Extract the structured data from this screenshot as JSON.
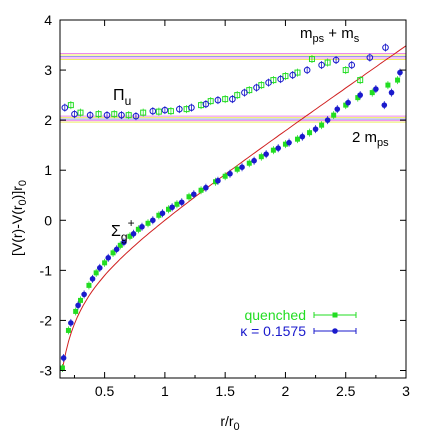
{
  "chart_data": {
    "type": "scatter",
    "xlabel": "r/r",
    "xlabel_sub": "0",
    "ylabel": "[V(r)-V(r",
    "ylabel_sub": "0",
    "ylabel_tail": ")]r",
    "ylabel_sub2": "0",
    "xlim": [
      0.13,
      3.0
    ],
    "ylim": [
      -3.15,
      4.0
    ],
    "xticks": [
      0.5,
      1,
      1.5,
      2,
      2.5,
      3
    ],
    "xtick_labels": [
      "0.5",
      "1",
      "1.5",
      "2",
      "2.5",
      "3"
    ],
    "yticks": [
      -3,
      -2,
      -1,
      0,
      1,
      2,
      3,
      4
    ],
    "ytick_labels": [
      "-3",
      "-2",
      "-1",
      "0",
      "1",
      "2",
      "3",
      "4"
    ],
    "grid": false,
    "legend_position": "bottom-right",
    "colors": {
      "quenched": "#22dd22",
      "kappa": "#1a1acc",
      "fit_curve": "#d02020",
      "band_magenta": "#ee88ee",
      "band_yellow": "#eeee66",
      "band_blue": "#9999ee"
    },
    "annotations": {
      "pi_u": "Π",
      "pi_u_sub": "u",
      "sigma": "Σ",
      "sigma_sub": "g",
      "sigma_sup": "+",
      "threshold_upper_a": "m",
      "threshold_upper_a_sub": "ps",
      "threshold_upper_plus": " + m",
      "threshold_upper_b_sub": "s",
      "threshold_lower_a": "2 m",
      "threshold_lower_sub": "ps"
    },
    "bands": [
      {
        "name": "upper",
        "lines": [
          3.33,
          3.3,
          3.27,
          3.24,
          3.21
        ]
      },
      {
        "name": "lower",
        "lines": [
          2.08,
          2.05,
          2.02,
          1.99,
          1.96
        ]
      }
    ],
    "series": [
      {
        "name": "quenched",
        "marker": "filled-square",
        "points": [
          [
            0.15,
            -2.95
          ],
          [
            0.2,
            -2.2
          ],
          [
            0.26,
            -1.82
          ],
          [
            0.3,
            -1.6
          ],
          [
            0.37,
            -1.3
          ],
          [
            0.43,
            -1.05
          ],
          [
            0.5,
            -0.85
          ],
          [
            0.57,
            -0.65
          ],
          [
            0.63,
            -0.5
          ],
          [
            0.71,
            -0.32
          ],
          [
            0.78,
            -0.18
          ],
          [
            0.86,
            -0.06
          ],
          [
            0.95,
            0.1
          ],
          [
            1.03,
            0.22
          ],
          [
            1.1,
            0.32
          ],
          [
            1.2,
            0.47
          ],
          [
            1.3,
            0.6
          ],
          [
            1.42,
            0.77
          ],
          [
            1.5,
            0.88
          ],
          [
            1.6,
            1.02
          ],
          [
            1.7,
            1.14
          ],
          [
            1.8,
            1.27
          ],
          [
            1.9,
            1.4
          ],
          [
            2.0,
            1.52
          ],
          [
            2.1,
            1.62
          ],
          [
            2.2,
            1.75
          ],
          [
            2.3,
            1.9
          ],
          [
            2.4,
            2.1
          ],
          [
            2.5,
            2.3
          ],
          [
            2.6,
            2.45
          ],
          [
            2.72,
            2.55
          ],
          [
            2.85,
            2.7
          ],
          [
            2.93,
            2.8
          ]
        ]
      },
      {
        "name": "kappa",
        "marker": "filled-circle",
        "points": [
          [
            0.16,
            -2.75
          ],
          [
            0.22,
            -2.05
          ],
          [
            0.28,
            -1.7
          ],
          [
            0.33,
            -1.48
          ],
          [
            0.4,
            -1.17
          ],
          [
            0.46,
            -0.95
          ],
          [
            0.53,
            -0.75
          ],
          [
            0.6,
            -0.58
          ],
          [
            0.66,
            -0.44
          ],
          [
            0.74,
            -0.27
          ],
          [
            0.81,
            -0.13
          ],
          [
            0.9,
            0.0
          ],
          [
            0.98,
            0.14
          ],
          [
            1.06,
            0.26
          ],
          [
            1.14,
            0.36
          ],
          [
            1.24,
            0.52
          ],
          [
            1.34,
            0.65
          ],
          [
            1.44,
            0.79
          ],
          [
            1.54,
            0.93
          ],
          [
            1.64,
            1.06
          ],
          [
            1.74,
            1.19
          ],
          [
            1.84,
            1.32
          ],
          [
            1.94,
            1.44
          ],
          [
            2.03,
            1.55
          ],
          [
            2.14,
            1.67
          ],
          [
            2.25,
            1.82
          ],
          [
            2.35,
            2.0
          ],
          [
            2.43,
            2.22
          ],
          [
            2.52,
            2.35
          ],
          [
            2.62,
            2.5
          ],
          [
            2.75,
            2.62
          ],
          [
            2.82,
            2.3
          ],
          [
            2.88,
            2.55
          ],
          [
            2.95,
            2.95
          ]
        ]
      },
      {
        "name": "quenched-pi",
        "marker": "open-square",
        "points": [
          [
            0.22,
            2.3
          ],
          [
            0.3,
            2.15
          ],
          [
            0.45,
            2.12
          ],
          [
            0.58,
            2.12
          ],
          [
            0.7,
            2.1
          ],
          [
            0.82,
            2.15
          ],
          [
            0.95,
            2.17
          ],
          [
            1.05,
            2.18
          ],
          [
            1.18,
            2.22
          ],
          [
            1.3,
            2.3
          ],
          [
            1.38,
            2.38
          ],
          [
            1.5,
            2.42
          ],
          [
            1.6,
            2.5
          ],
          [
            1.7,
            2.6
          ],
          [
            1.8,
            2.7
          ],
          [
            1.9,
            2.8
          ],
          [
            2.0,
            2.88
          ],
          [
            2.1,
            2.95
          ],
          [
            2.22,
            3.22
          ],
          [
            2.35,
            3.15
          ],
          [
            2.5,
            3.0
          ],
          [
            2.62,
            2.8
          ]
        ]
      },
      {
        "name": "kappa-pi",
        "marker": "open-circle",
        "points": [
          [
            0.17,
            2.25
          ],
          [
            0.25,
            2.12
          ],
          [
            0.38,
            2.1
          ],
          [
            0.52,
            2.1
          ],
          [
            0.64,
            2.1
          ],
          [
            0.76,
            2.08
          ],
          [
            0.9,
            2.18
          ],
          [
            1.0,
            2.2
          ],
          [
            1.12,
            2.22
          ],
          [
            1.22,
            2.25
          ],
          [
            1.34,
            2.32
          ],
          [
            1.44,
            2.4
          ],
          [
            1.56,
            2.42
          ],
          [
            1.66,
            2.55
          ],
          [
            1.76,
            2.65
          ],
          [
            1.86,
            2.75
          ],
          [
            1.96,
            2.82
          ],
          [
            2.06,
            2.9
          ],
          [
            2.18,
            3.0
          ],
          [
            2.3,
            3.1
          ],
          [
            2.42,
            3.2
          ],
          [
            2.55,
            3.1
          ],
          [
            2.7,
            3.25
          ],
          [
            2.83,
            3.45
          ]
        ]
      }
    ],
    "legend": [
      {
        "key": "quenched",
        "label": "quenched"
      },
      {
        "key": "kappa",
        "label": "κ = 0.1575"
      }
    ]
  }
}
